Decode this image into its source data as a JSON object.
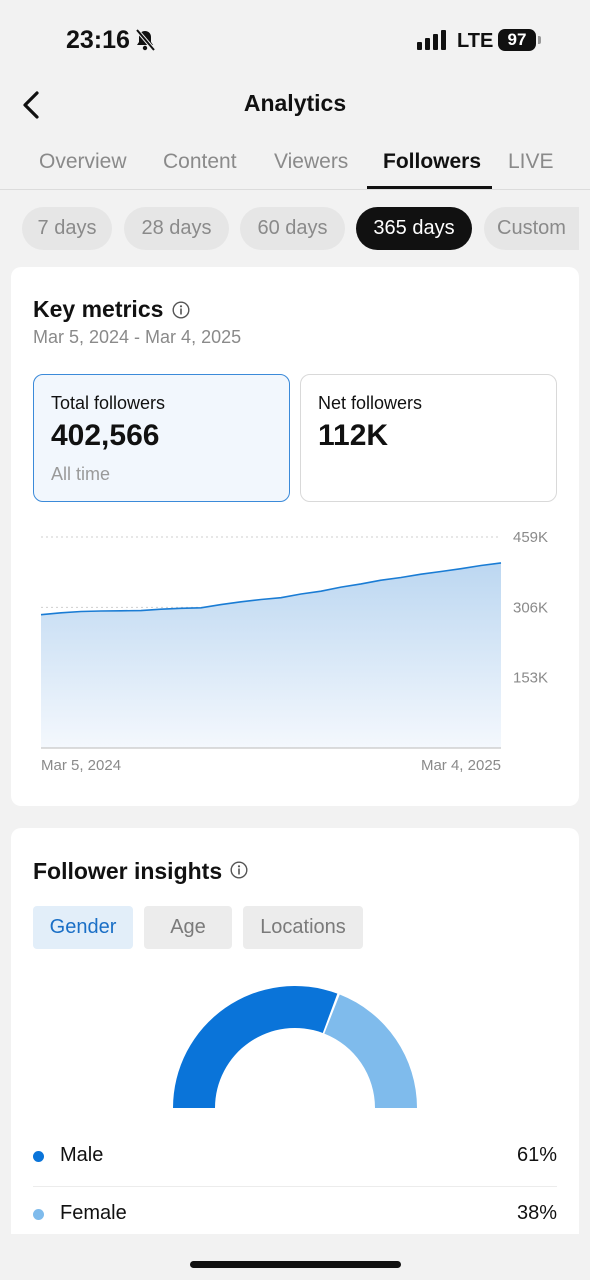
{
  "status_bar": {
    "time": "23:16",
    "network": "LTE",
    "battery": "97"
  },
  "header": {
    "title": "Analytics"
  },
  "tabs": [
    {
      "label": "Overview",
      "active": false
    },
    {
      "label": "Content",
      "active": false
    },
    {
      "label": "Viewers",
      "active": false
    },
    {
      "label": "Followers",
      "active": true
    },
    {
      "label": "LIVE",
      "active": false
    }
  ],
  "range_chips": [
    {
      "label": "7 days",
      "active": false
    },
    {
      "label": "28 days",
      "active": false
    },
    {
      "label": "60 days",
      "active": false
    },
    {
      "label": "365 days",
      "active": true
    },
    {
      "label": "Custom",
      "active": false
    }
  ],
  "key_metrics": {
    "title": "Key metrics",
    "date_range": "Mar 5, 2024 - Mar 4, 2025",
    "cards": [
      {
        "label": "Total followers",
        "value": "402,566",
        "sub": "All time",
        "selected": true
      },
      {
        "label": "Net followers",
        "value": "112K",
        "sub": "",
        "selected": false
      }
    ]
  },
  "chart_data": {
    "type": "area",
    "title": "",
    "xlabel": "",
    "ylabel": "",
    "x_start_label": "Mar 5, 2024",
    "x_end_label": "Mar 4, 2025",
    "y_ticks": [
      {
        "value": 459000,
        "label": "459K"
      },
      {
        "value": 306000,
        "label": "306K"
      },
      {
        "value": 153000,
        "label": "153K"
      }
    ],
    "ylim": [
      0,
      459000
    ],
    "grid": true,
    "series": [
      {
        "values": [
          290000,
          294000,
          297000,
          298000,
          298500,
          299000,
          302000,
          304000,
          305000,
          312000,
          318000,
          323000,
          327000,
          335000,
          341000,
          350000,
          357000,
          365000,
          371000,
          378000,
          384000,
          390000,
          397000,
          402566
        ]
      }
    ],
    "color": "#1a7cd4"
  },
  "insights": {
    "title": "Follower insights",
    "tabs": [
      {
        "label": "Gender",
        "active": true
      },
      {
        "label": "Age",
        "active": false
      },
      {
        "label": "Locations",
        "active": false
      }
    ],
    "gender": [
      {
        "label": "Male",
        "percent": 61,
        "percent_label": "61%",
        "color": "#0a74d9"
      },
      {
        "label": "Female",
        "percent": 38,
        "percent_label": "38%",
        "color": "#7fbbec"
      }
    ]
  }
}
